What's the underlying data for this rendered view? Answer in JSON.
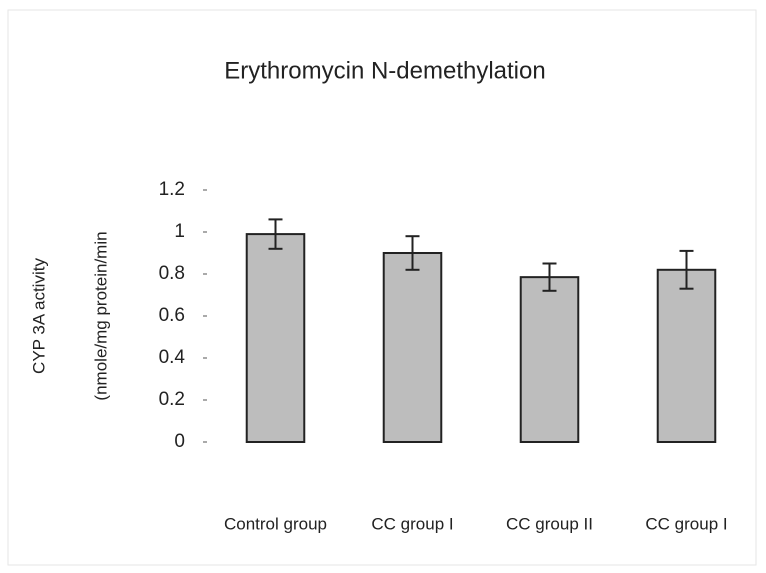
{
  "chart_data": {
    "type": "bar",
    "title": "Erythromycin N-demethylation",
    "y_label": [
      "CYP 3A activity",
      "(nmole/mg protein/min"
    ],
    "categories": [
      "Control group",
      "CC group I",
      "CC group II",
      "CC group I"
    ],
    "values": [
      0.99,
      0.9,
      0.785,
      0.82
    ],
    "errors": [
      0.07,
      0.08,
      0.065,
      0.09
    ],
    "color": "#bdbdbd",
    "ylim": [
      0,
      1.2
    ],
    "yticks": [
      0,
      0.2,
      0.4,
      0.6,
      0.8,
      1,
      1.2
    ]
  }
}
